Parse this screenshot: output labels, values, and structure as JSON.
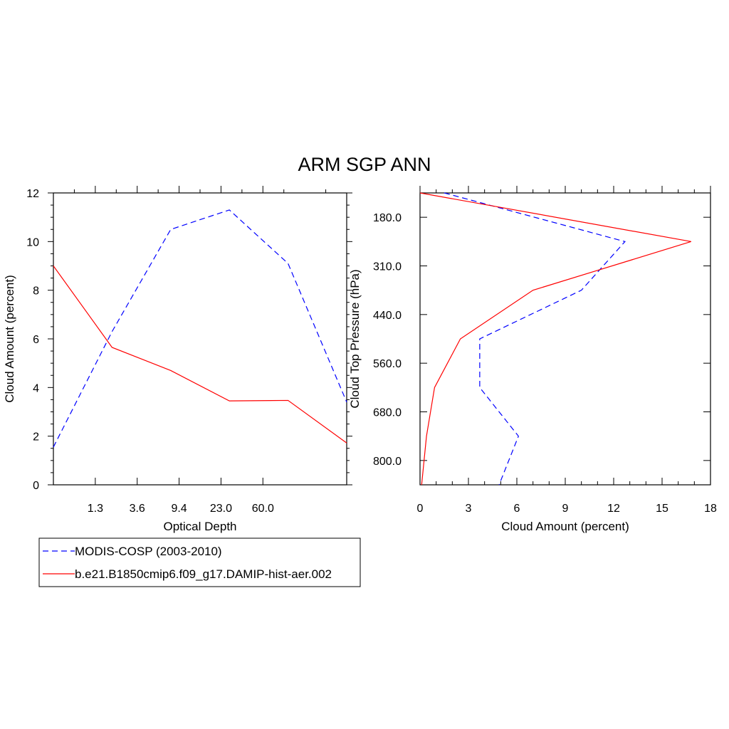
{
  "title": "ARM SGP ANN",
  "colors": {
    "obs": "#0000ff",
    "model": "#ff0000",
    "axis": "#000000"
  },
  "legend": {
    "placement": "bottom-left",
    "entries": [
      {
        "label": "MODIS-COSP (2003-2010)",
        "style": "dashed",
        "color": "#0000ff"
      },
      {
        "label": "b.e21.B1850cmip6.f09_g17.DAMIP-hist-aer.002",
        "style": "solid",
        "color": "#ff0000"
      }
    ]
  },
  "chart_data": [
    {
      "type": "line",
      "xlabel": "Optical Depth",
      "ylabel": "Cloud Amount (percent)",
      "x_tick_labels": [
        "1.3",
        "3.6",
        "9.4",
        "23.0",
        "60.0"
      ],
      "ylim": [
        0,
        12
      ],
      "y_ticks": [
        "0",
        "2",
        "4",
        "6",
        "8",
        "10",
        "12"
      ],
      "x_bins": 7,
      "series": [
        {
          "name": "MODIS-COSP (2003-2010)",
          "style": "dashed",
          "color": "#0000ff",
          "values": [
            1.55,
            6.3,
            10.5,
            11.3,
            9.1,
            3.4
          ]
        },
        {
          "name": "b.e21.B1850cmip6.f09_g17.DAMIP-hist-aer.002",
          "style": "solid",
          "color": "#ff0000",
          "values": [
            9.0,
            5.65,
            4.7,
            3.45,
            3.47,
            1.72
          ]
        }
      ],
      "grid": false
    },
    {
      "type": "line",
      "xlabel": "Cloud Amount (percent)",
      "ylabel": "Cloud Top Pressure (hPa)",
      "xlim": [
        0,
        18
      ],
      "x_ticks": [
        "0",
        "3",
        "6",
        "9",
        "12",
        "15",
        "18"
      ],
      "y_tick_labels": [
        "180.0",
        "310.0",
        "440.0",
        "560.0",
        "680.0",
        "800.0"
      ],
      "y_bins": 6,
      "series": [
        {
          "name": "MODIS-COSP (2003-2010)",
          "style": "dashed",
          "color": "#0000ff",
          "values": [
            1.5,
            12.7,
            10.0,
            3.7,
            3.7,
            6.1,
            4.9
          ]
        },
        {
          "name": "b.e21.B1850cmip6.f09_g17.DAMIP-hist-aer.002",
          "style": "solid",
          "color": "#ff0000",
          "values": [
            0.0,
            16.8,
            7.0,
            2.5,
            0.9,
            0.4,
            0.1
          ]
        }
      ],
      "grid": false
    }
  ]
}
